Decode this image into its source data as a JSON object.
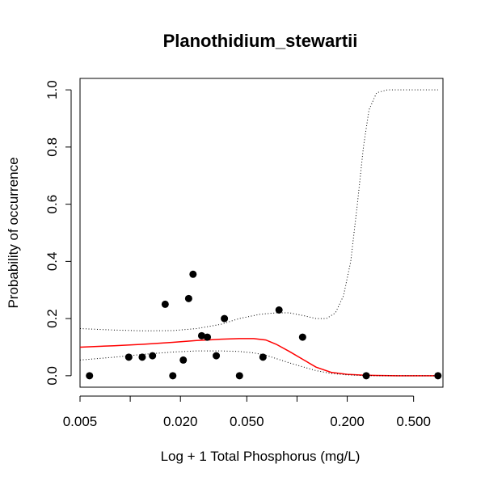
{
  "chart_data": {
    "type": "scatter",
    "title": "Planothidium_stewartii",
    "xlabel": "Log + 1 Total Phosphorus (mg/L)",
    "ylabel": "Probability of occurrence",
    "x_scale": "log",
    "xlim": [
      0.005,
      0.75
    ],
    "ylim": [
      -0.04,
      1.04
    ],
    "x_ticks": [
      0.005,
      0.01,
      0.02,
      0.05,
      0.1,
      0.2,
      0.5
    ],
    "x_tick_labels": [
      "0.005",
      "",
      "0.020",
      "0.050",
      "",
      "0.200",
      "0.500"
    ],
    "y_ticks": [
      0,
      0.2,
      0.4,
      0.6,
      0.8,
      1.0
    ],
    "y_tick_labels": [
      "0.0",
      "0.2",
      "0.4",
      "0.6",
      "0.8",
      "1.0"
    ],
    "grid": false,
    "points": [
      {
        "x": 0.0057,
        "y": 0.0
      },
      {
        "x": 0.0098,
        "y": 0.065
      },
      {
        "x": 0.0118,
        "y": 0.065
      },
      {
        "x": 0.0136,
        "y": 0.07
      },
      {
        "x": 0.0162,
        "y": 0.25
      },
      {
        "x": 0.018,
        "y": 0.0
      },
      {
        "x": 0.0208,
        "y": 0.055
      },
      {
        "x": 0.0224,
        "y": 0.27
      },
      {
        "x": 0.0238,
        "y": 0.355
      },
      {
        "x": 0.0268,
        "y": 0.14
      },
      {
        "x": 0.029,
        "y": 0.135
      },
      {
        "x": 0.0328,
        "y": 0.07
      },
      {
        "x": 0.0367,
        "y": 0.2
      },
      {
        "x": 0.0452,
        "y": 0.0
      },
      {
        "x": 0.0625,
        "y": 0.065
      },
      {
        "x": 0.078,
        "y": 0.23
      },
      {
        "x": 0.108,
        "y": 0.135
      },
      {
        "x": 0.26,
        "y": 0.0
      },
      {
        "x": 0.7,
        "y": 0.0
      }
    ],
    "series": [
      {
        "color": "#ff0000",
        "style": "solid",
        "x": [
          0.005,
          0.008,
          0.012,
          0.018,
          0.025,
          0.035,
          0.045,
          0.055,
          0.065,
          0.075,
          0.09,
          0.11,
          0.13,
          0.16,
          0.2,
          0.25,
          0.3,
          0.4,
          0.5,
          0.6,
          0.7
        ],
        "y": [
          0.1,
          0.105,
          0.11,
          0.117,
          0.123,
          0.128,
          0.13,
          0.13,
          0.125,
          0.11,
          0.085,
          0.055,
          0.03,
          0.012,
          0.005,
          0.002,
          0.001,
          0.0,
          0.0,
          0.0,
          0.0
        ]
      },
      {
        "color": "#000000",
        "style": "dotted",
        "x": [
          0.005,
          0.008,
          0.012,
          0.018,
          0.025,
          0.035,
          0.045,
          0.06,
          0.075,
          0.09,
          0.11,
          0.13,
          0.15,
          0.17,
          0.19,
          0.21,
          0.23,
          0.25,
          0.27,
          0.3,
          0.35,
          0.4,
          0.45,
          0.55,
          0.7
        ],
        "y": [
          0.165,
          0.16,
          0.157,
          0.158,
          0.165,
          0.18,
          0.2,
          0.215,
          0.22,
          0.22,
          0.21,
          0.2,
          0.2,
          0.22,
          0.28,
          0.4,
          0.6,
          0.8,
          0.93,
          0.99,
          1.0,
          1.0,
          1.0,
          1.0,
          1.0
        ]
      },
      {
        "color": "#000000",
        "style": "dotted",
        "x": [
          0.005,
          0.008,
          0.012,
          0.018,
          0.025,
          0.035,
          0.045,
          0.055,
          0.065,
          0.075,
          0.09,
          0.11,
          0.13,
          0.16,
          0.2,
          0.25,
          0.3,
          0.4,
          0.5,
          0.7
        ],
        "y": [
          0.055,
          0.065,
          0.075,
          0.083,
          0.087,
          0.087,
          0.085,
          0.08,
          0.072,
          0.06,
          0.045,
          0.03,
          0.018,
          0.008,
          0.003,
          0.001,
          0.0,
          0.0,
          0.0,
          0.0
        ]
      }
    ]
  }
}
